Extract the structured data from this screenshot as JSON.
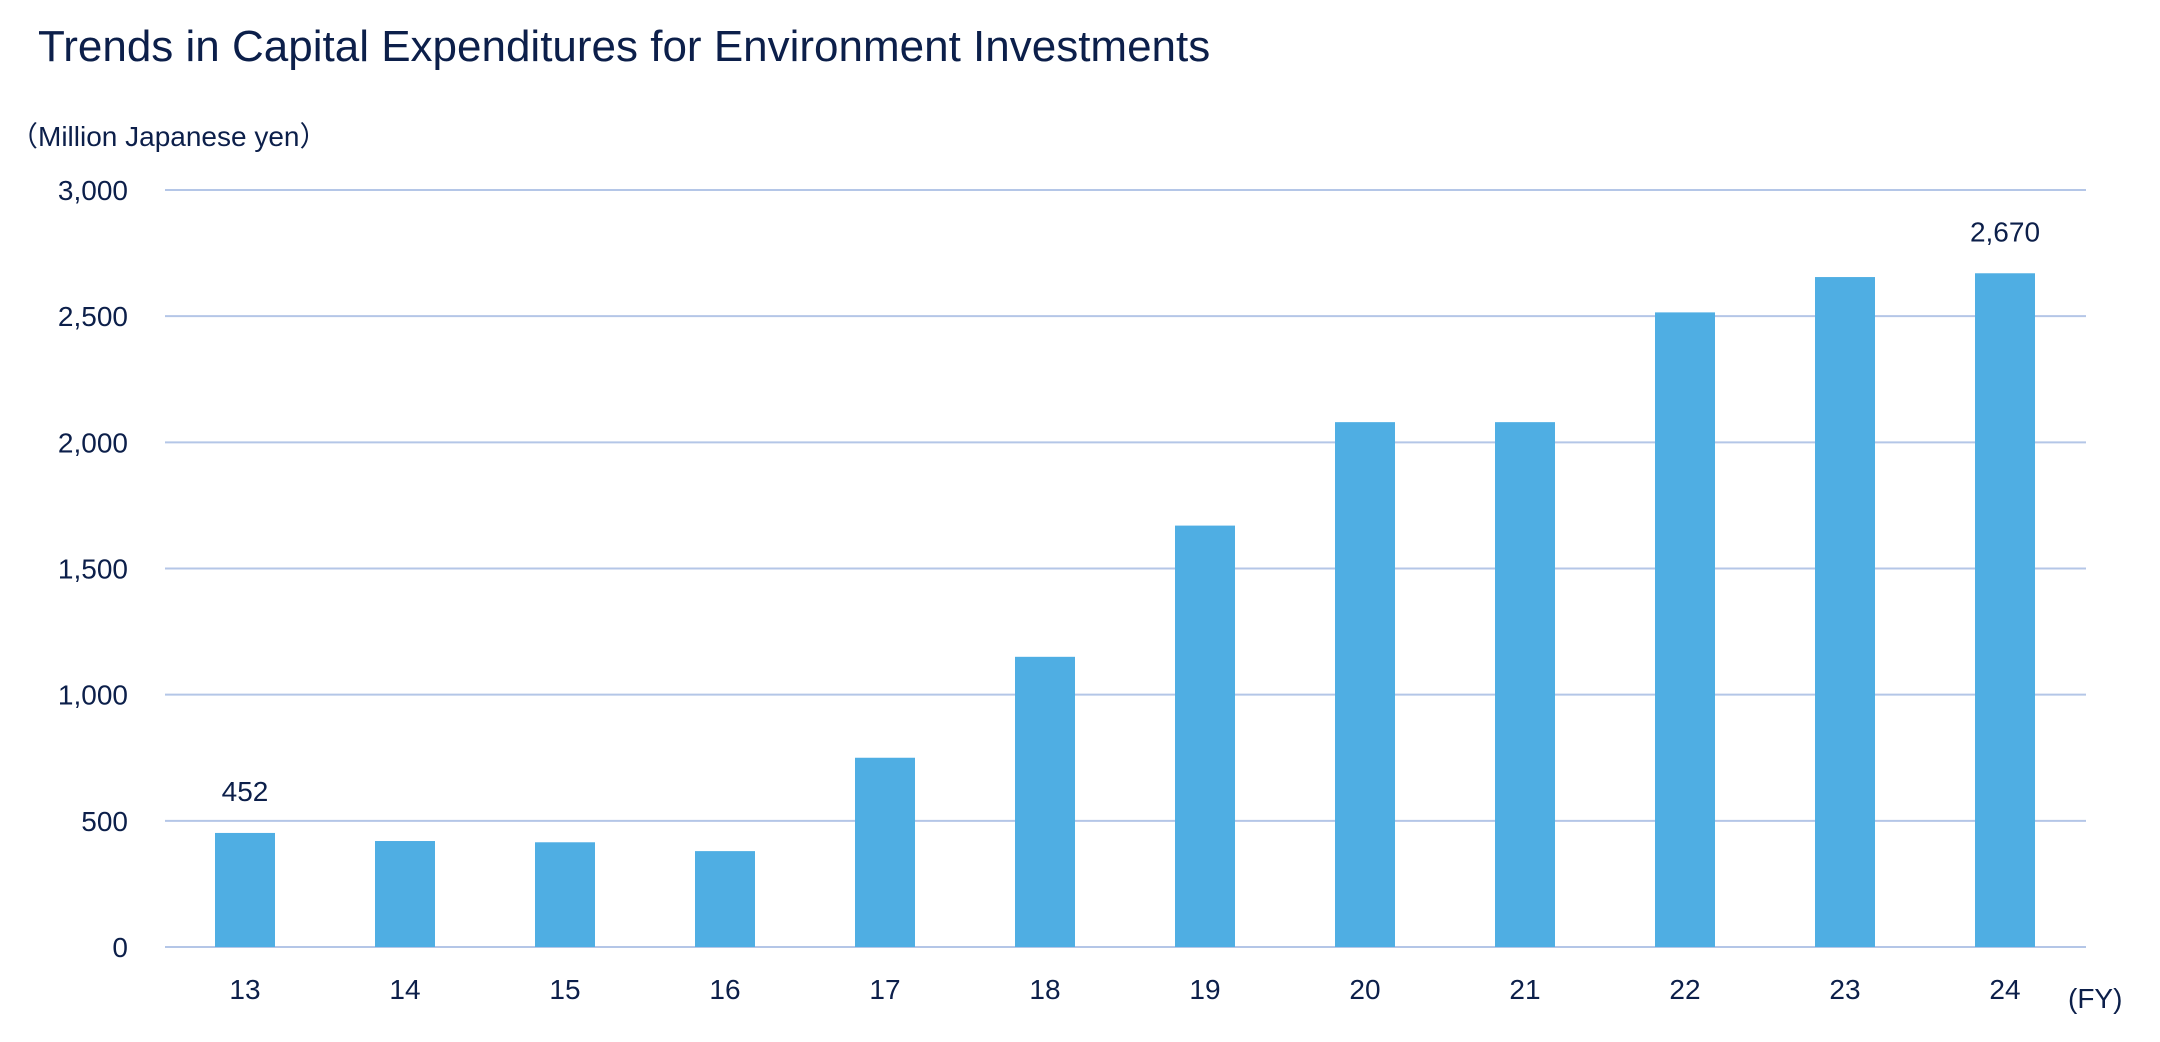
{
  "chart_data": {
    "type": "bar",
    "title": "Trends in Capital Expenditures for Environment Investments",
    "ylabel": "（Million Japanese yen）",
    "xlabel": "(FY)",
    "categories": [
      "13",
      "14",
      "15",
      "16",
      "17",
      "18",
      "19",
      "20",
      "21",
      "22",
      "23",
      "24"
    ],
    "values": [
      452,
      420,
      415,
      380,
      750,
      1150,
      1670,
      2080,
      2080,
      2515,
      2655,
      2670
    ],
    "data_labels": [
      {
        "category": "13",
        "text": "452"
      },
      {
        "category": "24",
        "text": "2,670"
      }
    ],
    "ylim": [
      0,
      3000
    ],
    "yticks": [
      {
        "value": 0,
        "label": "0"
      },
      {
        "value": 500,
        "label": "500"
      },
      {
        "value": 1000,
        "label": "1,000"
      },
      {
        "value": 1500,
        "label": "1,500"
      },
      {
        "value": 2000,
        "label": "2,000"
      },
      {
        "value": 2500,
        "label": "2,500"
      },
      {
        "value": 3000,
        "label": "3,000"
      }
    ],
    "grid": true,
    "legend": "none",
    "colors": {
      "bar": "#4faee3",
      "grid": "#b4c6e7",
      "text": "#0c1f4a"
    }
  }
}
